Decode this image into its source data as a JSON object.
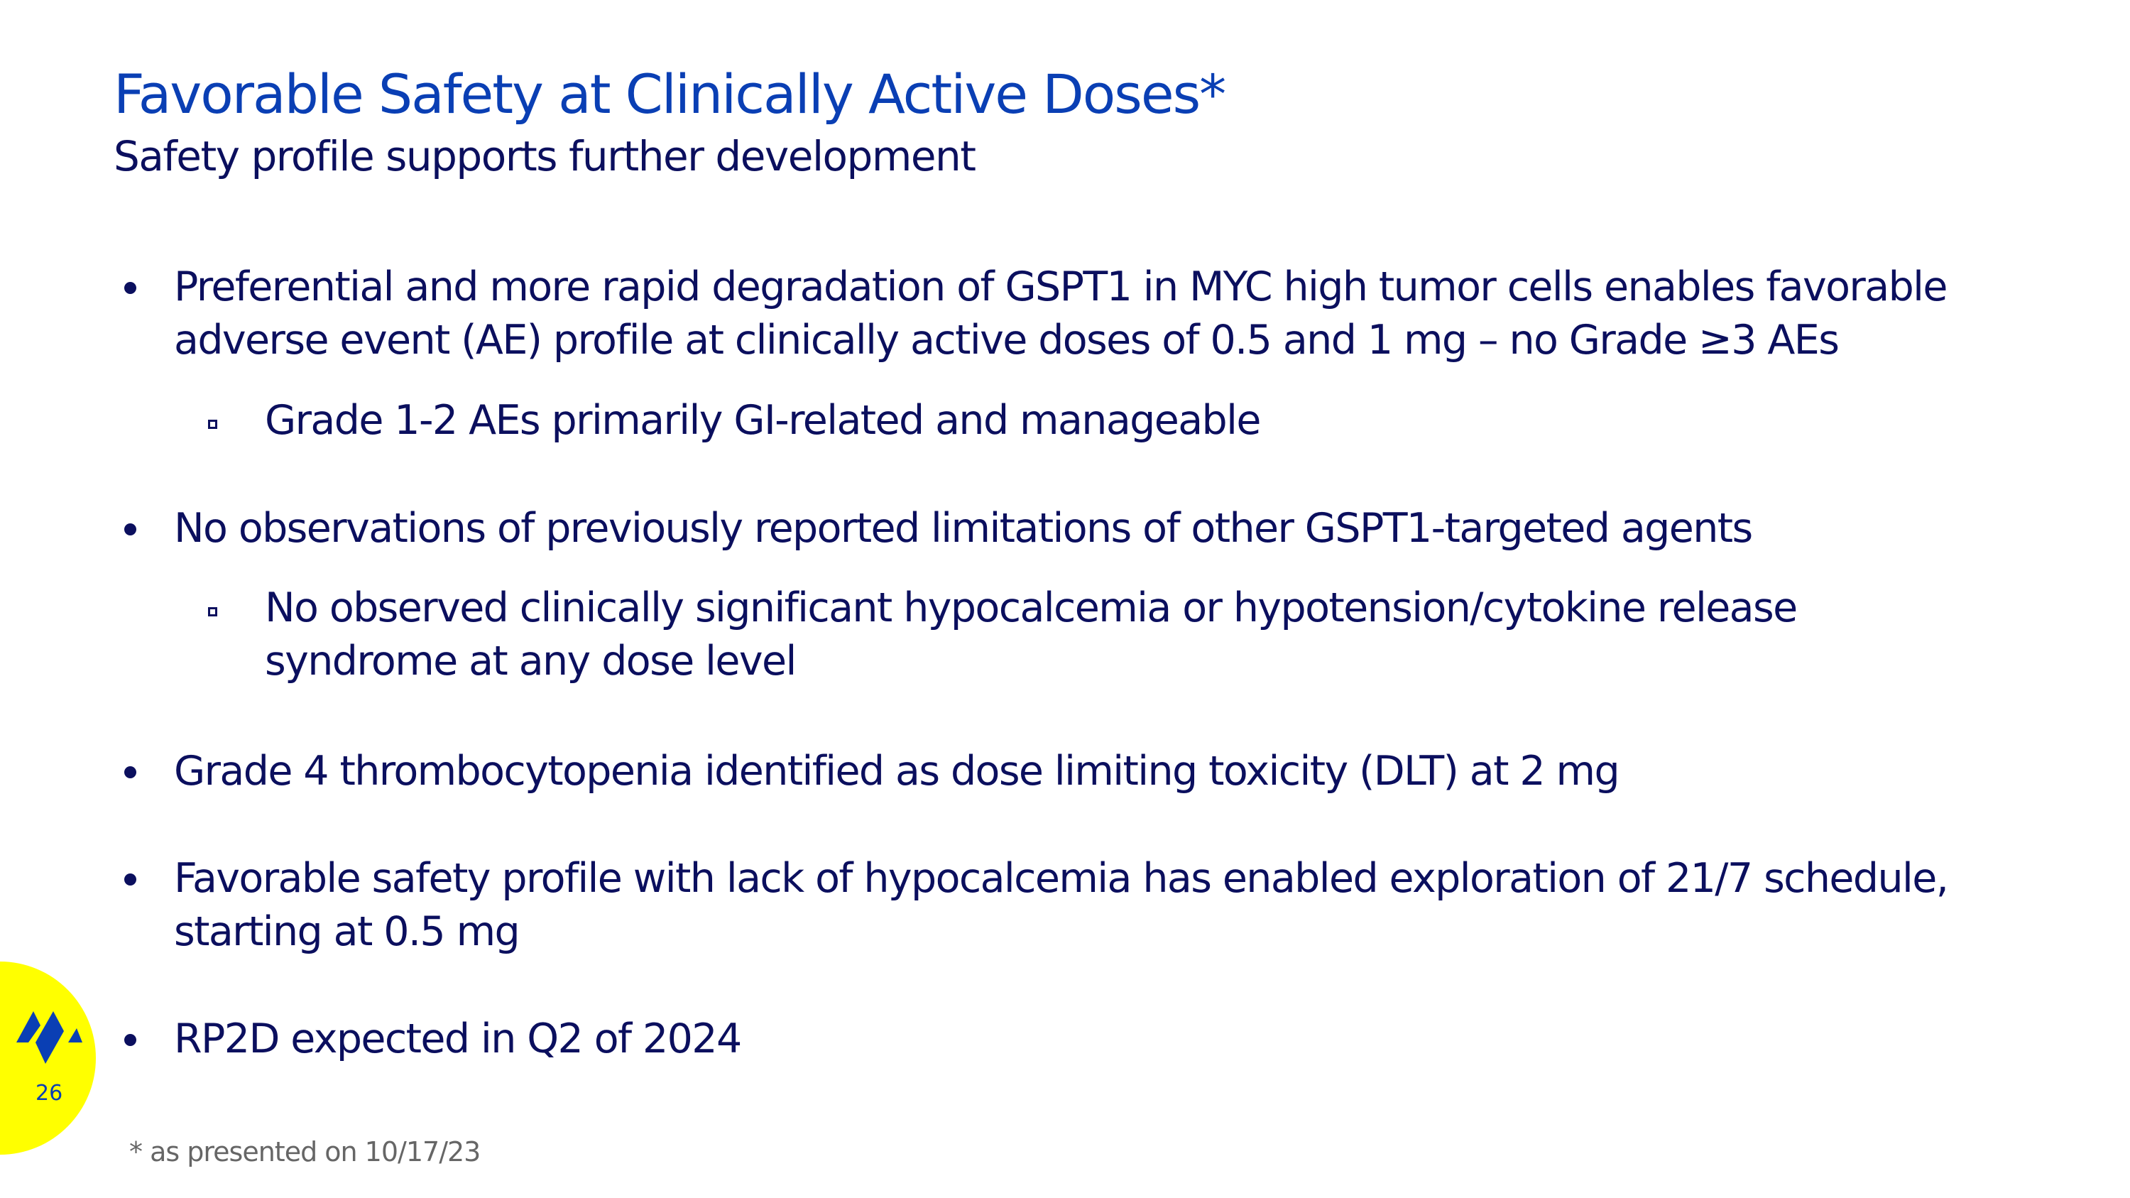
{
  "header": {
    "title": "Favorable Safety at Clinically Active Doses*",
    "subtitle": "Safety profile supports further development"
  },
  "bullets": [
    {
      "lines": [
        "Preferential and more rapid degradation of GSPT1 in MYC high tumor cells enables favorable",
        "adverse event (AE) profile at clinically active doses of 0.5 and 1 mg – no Grade ≥3 AEs"
      ],
      "sub": [
        {
          "lines": [
            "Grade 1-2 AEs primarily GI-related and manageable"
          ]
        }
      ]
    },
    {
      "lines": [
        "No observations of previously reported limitations of other GSPT1-targeted agents"
      ],
      "sub": [
        {
          "lines": [
            "No observed clinically significant hypocalcemia or hypotension/cytokine release",
            "syndrome at any dose level"
          ]
        }
      ]
    },
    {
      "lines": [
        "Grade 4 thrombocytopenia identified as dose limiting toxicity (DLT) at 2 mg"
      ]
    },
    {
      "lines": [
        "Favorable safety profile with lack of hypocalcemia has enabled exploration of 21/7 schedule,",
        "starting at 0.5 mg"
      ]
    },
    {
      "lines": [
        "RP2D expected in Q2 of 2024"
      ]
    }
  ],
  "footnote": "* as presented on 10/17/23",
  "page_number": "26",
  "colors": {
    "title": "#0a3fb4",
    "body": "#0b0f5e",
    "badge": "#ffff00"
  },
  "icons": {
    "logo": "company-logo-icon"
  }
}
